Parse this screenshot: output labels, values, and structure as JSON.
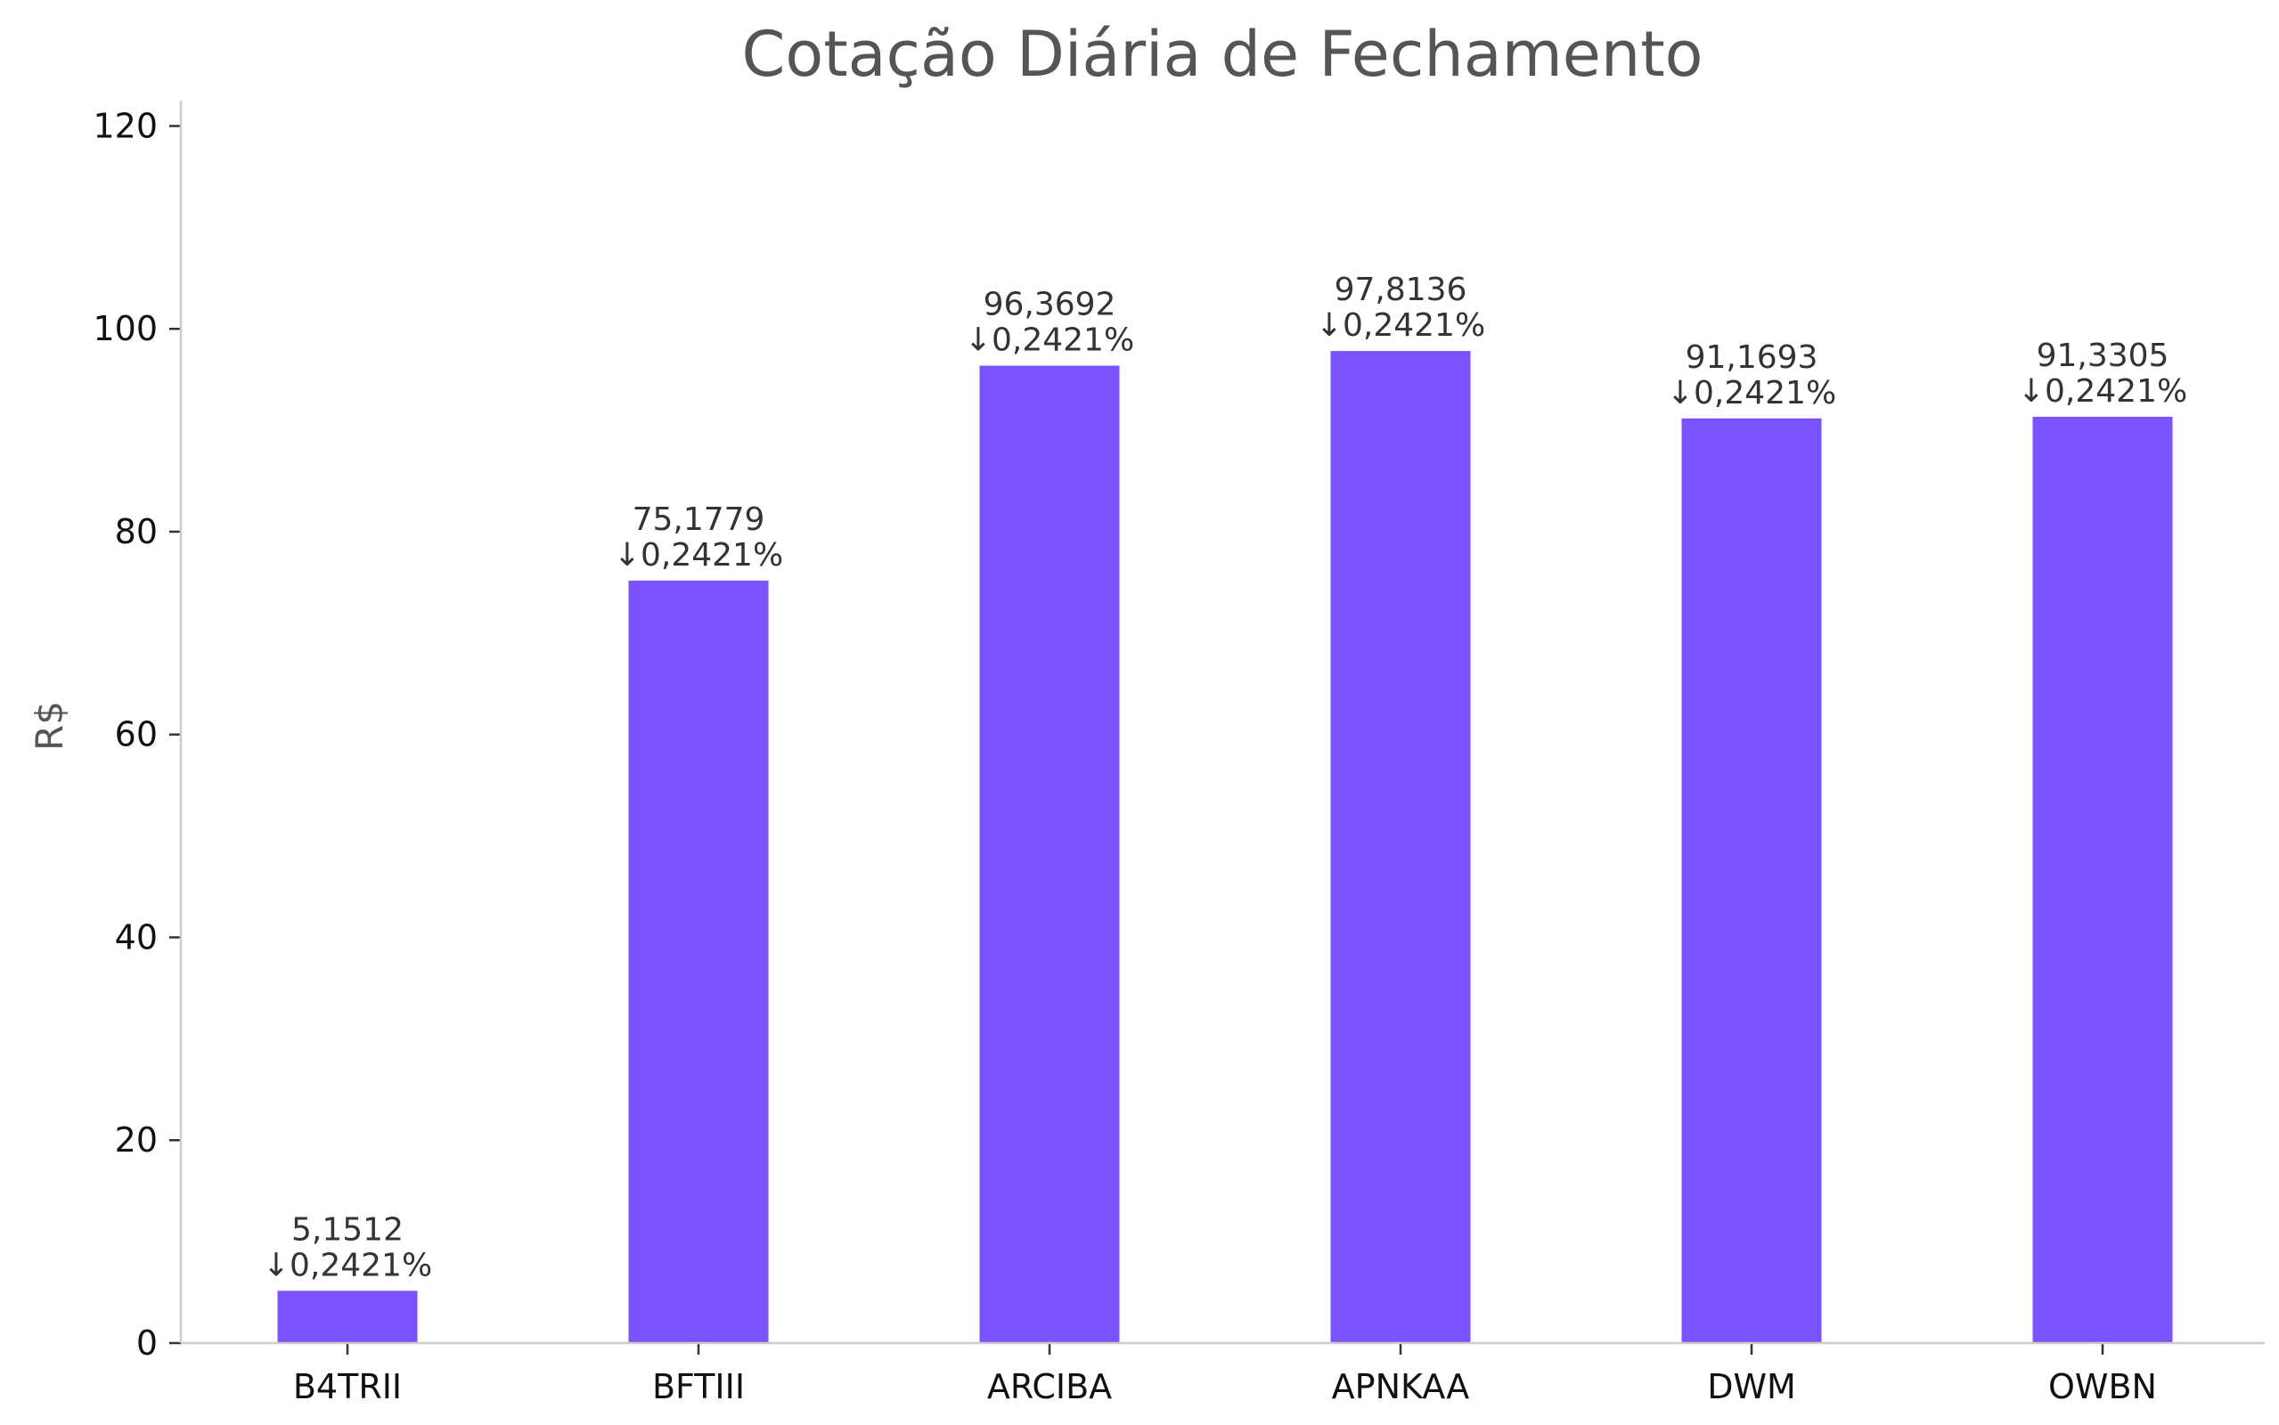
{
  "chart_data": {
    "type": "bar",
    "title": "Cotação Diária de Fechamento",
    "xlabel": "",
    "ylabel": "R$",
    "categories": [
      "B4TRII",
      "BFTIII",
      "ARCIBA",
      "APNKAA",
      "DWM",
      "OWBN"
    ],
    "values": [
      5.1512,
      75.1779,
      96.3692,
      97.8136,
      91.1693,
      91.3305
    ],
    "value_labels": [
      "5,1512",
      "75,1779",
      "96,3692",
      "97,8136",
      "91,1693",
      "91,3305"
    ],
    "change_labels": [
      "↓0,2421%",
      "↓0,2421%",
      "↓0,2421%",
      "↓0,2421%",
      "↓0,2421%",
      "↓0,2421%"
    ],
    "ylim": [
      0,
      122.5
    ],
    "yticks": [
      0,
      20,
      40,
      60,
      80,
      100,
      120
    ],
    "grid": false,
    "legend": "none",
    "bar_color": "#7b52ff",
    "title_color": "#555555",
    "axis_color": "#cccccc"
  }
}
